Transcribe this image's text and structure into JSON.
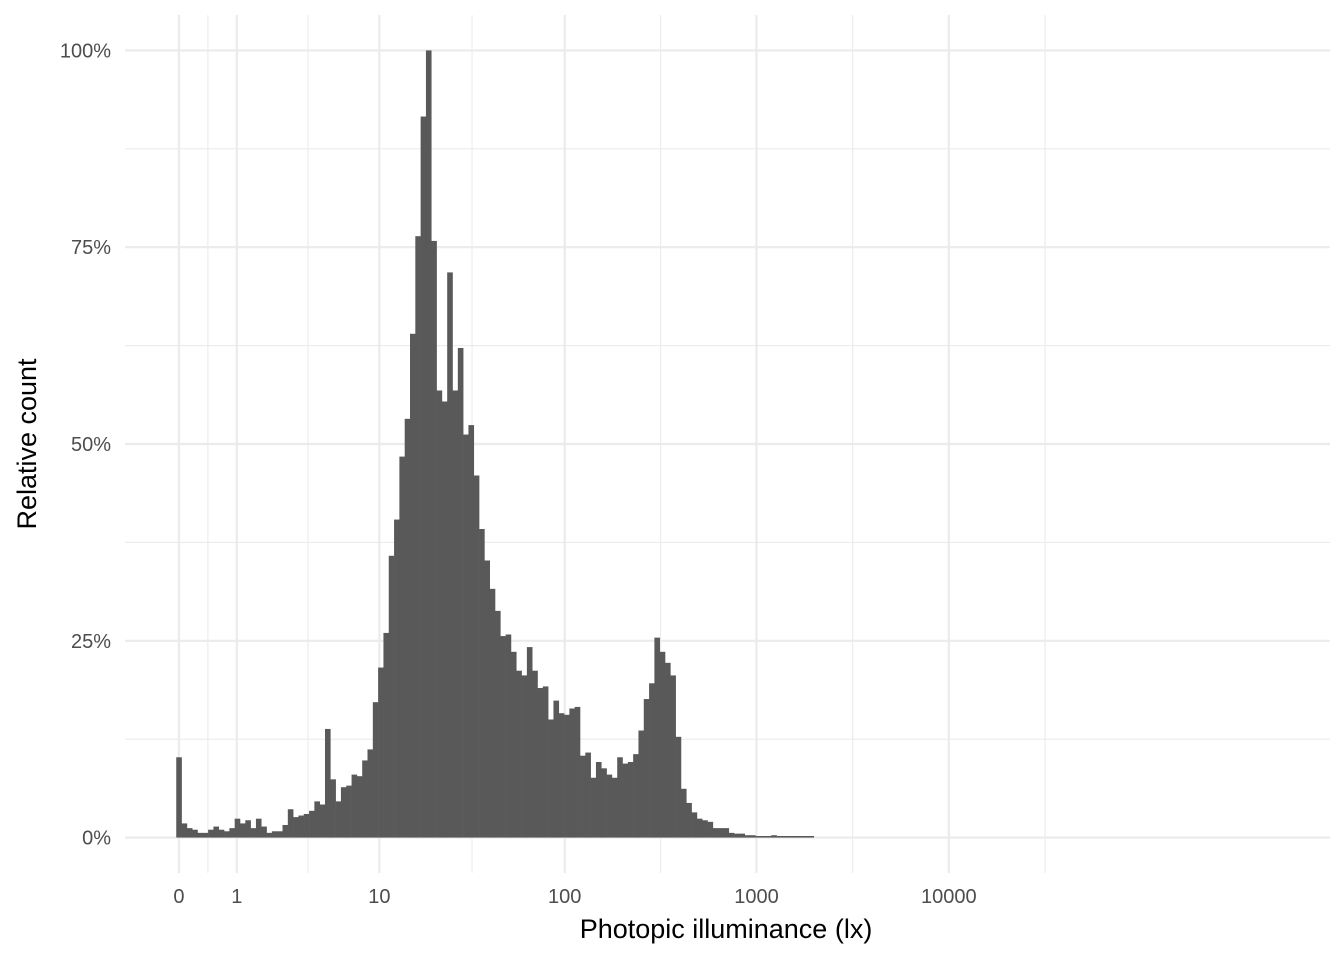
{
  "chart_data": {
    "type": "bar",
    "subtype": "histogram",
    "xlabel": "Photopic illuminance (lx)",
    "ylabel": "Relative count",
    "x_scale": "log10(x + 1)",
    "x_breaks": [
      0,
      1,
      10,
      100,
      1000,
      10000
    ],
    "x_break_labels": [
      "0",
      "1",
      "10",
      "100",
      "1000",
      "10000"
    ],
    "y_breaks": [
      0,
      25,
      50,
      75,
      100
    ],
    "y_break_labels": [
      "0%",
      "25%",
      "50%",
      "75%",
      "100%"
    ],
    "ylim": [
      -4.5,
      104.5
    ],
    "grid": true,
    "legend": "none",
    "bar_color": "#595959",
    "grid_color": "#ebebeb",
    "bin_width_log": 0.0276,
    "bin_start_log": -0.0138,
    "values": [
      10.2,
      1.8,
      1.2,
      1.0,
      0.6,
      0.6,
      1.0,
      1.4,
      1.0,
      0.8,
      1.2,
      2.4,
      1.8,
      2.2,
      1.2,
      2.4,
      1.4,
      0.6,
      0.8,
      0.8,
      1.6,
      3.6,
      2.6,
      2.8,
      3.0,
      3.4,
      4.6,
      4.2,
      13.8,
      7.4,
      4.6,
      6.4,
      6.6,
      8.0,
      7.8,
      9.8,
      11.2,
      17.2,
      21.6,
      26.0,
      35.8,
      40.4,
      48.4,
      53.2,
      64.0,
      76.4,
      91.6,
      100.0,
      75.8,
      56.8,
      55.4,
      71.8,
      56.8,
      62.2,
      51.2,
      52.4,
      46.0,
      39.2,
      35.2,
      31.6,
      28.8,
      25.6,
      25.8,
      23.6,
      21.2,
      20.6,
      24.2,
      21.2,
      19.0,
      19.2,
      15.0,
      17.4,
      15.8,
      15.6,
      16.4,
      16.6,
      10.4,
      10.8,
      7.6,
      9.6,
      8.8,
      8.0,
      7.6,
      10.2,
      9.4,
      9.6,
      10.6,
      13.6,
      17.6,
      19.6,
      25.4,
      23.6,
      22.2,
      20.6,
      12.8,
      6.2,
      4.4,
      3.2,
      2.4,
      2.2,
      2.0,
      1.2,
      1.2,
      1.2,
      0.6,
      0.5,
      0.5,
      0.3,
      0.3,
      0.2,
      0.2,
      0.2,
      0.3,
      0.2,
      0.2,
      0.2,
      0.2,
      0.2,
      0.2,
      0.2
    ]
  }
}
